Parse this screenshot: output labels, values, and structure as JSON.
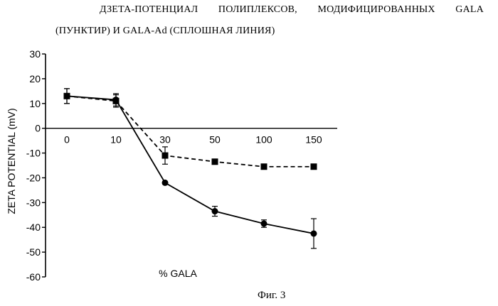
{
  "header": {
    "title_line_1": "ДЗЕТА-ПОТЕНЦИАЛ ПОЛИПЛЕКСОВ, МОДИФИЦИРОВАННЫХ GALA",
    "title_line_2": "(ПУНКТИР) И GALA-Ad (СПЛОШНАЯ ЛИНИЯ)"
  },
  "caption": "Фиг. 3",
  "chart_data": {
    "type": "line",
    "title": "ДЗЕТА-ПОТЕНЦИАЛ ПОЛИПЛЕКСОВ, МОДИФИЦИРОВАННЫХ GALA (ПУНКТИР) И GALA-Ad (СПЛОШНАЯ ЛИНИЯ)",
    "xlabel": "% GALA",
    "ylabel": "ZETA POTENTIAL (mV)",
    "categories": [
      "0",
      "10",
      "30",
      "50",
      "100",
      "150"
    ],
    "ylim": [
      -60,
      30
    ],
    "yticks": [
      30,
      20,
      10,
      0,
      -10,
      -20,
      -30,
      -40,
      -50,
      -60
    ],
    "grid": false,
    "legend": "none",
    "series": [
      {
        "marker": "square",
        "line_style": "dashed",
        "values": [
          13,
          11,
          -11,
          -13.5,
          -15.5,
          -15.5
        ],
        "errors": [
          3,
          2.5,
          3.5,
          1,
          1,
          1
        ]
      },
      {
        "marker": "circle",
        "line_style": "solid",
        "values": [
          13,
          11.5,
          -22,
          -33.5,
          -38.5,
          -42.5
        ],
        "errors": [
          3,
          2.5,
          0.5,
          2,
          1.5,
          6
        ]
      }
    ]
  }
}
